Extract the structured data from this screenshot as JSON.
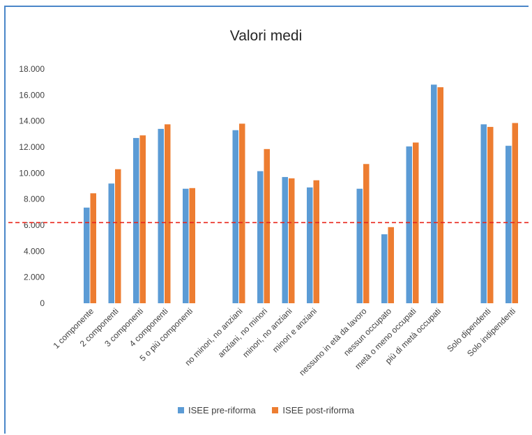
{
  "chart_data": {
    "type": "bar",
    "title": "Valori medi",
    "xlabel": "",
    "ylabel": "",
    "ylim": [
      0,
      18000
    ],
    "yticks": [
      0,
      2000,
      4000,
      6000,
      8000,
      10000,
      12000,
      14000,
      16000,
      18000
    ],
    "ytick_labels": [
      "0",
      "2.000",
      "4.000",
      "6.000",
      "8.000",
      "10.000",
      "12.000",
      "14.000",
      "16.000",
      "18.000"
    ],
    "grid": false,
    "legend_position": "bottom",
    "groups": [
      [
        "1 componente",
        "2 componenti",
        "3 componenti",
        "4 componenti",
        "5 o più componenti"
      ],
      [
        "no minori, no anziani",
        "anziani, no minori",
        "minori, no anziani",
        "minori e anziani"
      ],
      [
        "nessuno in età da lavoro",
        "nessun occupato",
        "metà o meno occupati",
        "più di metà occupati"
      ],
      [
        "Solo dipendenti",
        "Solo indipendenti"
      ]
    ],
    "categories": [
      "1 componente",
      "2 componenti",
      "3 componenti",
      "4 componenti",
      "5 o più componenti",
      "no minori, no anziani",
      "anziani, no minori",
      "minori, no anziani",
      "minori e anziani",
      "nessuno in età da lavoro",
      "nessun occupato",
      "metà o meno occupati",
      "più di metà occupati",
      "Solo dipendenti",
      "Solo indipendenti"
    ],
    "series": [
      {
        "name": "ISEE pre-riforma",
        "color": "#5b9bd5",
        "values": [
          7350,
          9200,
          12700,
          13400,
          8800,
          13300,
          10150,
          9700,
          8900,
          8800,
          5300,
          12050,
          16800,
          13750,
          12100
        ]
      },
      {
        "name": "ISEE post-riforma",
        "color": "#ed7d31",
        "values": [
          8450,
          10300,
          12900,
          13750,
          8850,
          13800,
          11850,
          9600,
          9450,
          10700,
          5850,
          12350,
          16600,
          13550,
          13850
        ]
      }
    ],
    "reference_line": {
      "value": 6200,
      "color": "#e8251b",
      "style": "dashed"
    }
  }
}
